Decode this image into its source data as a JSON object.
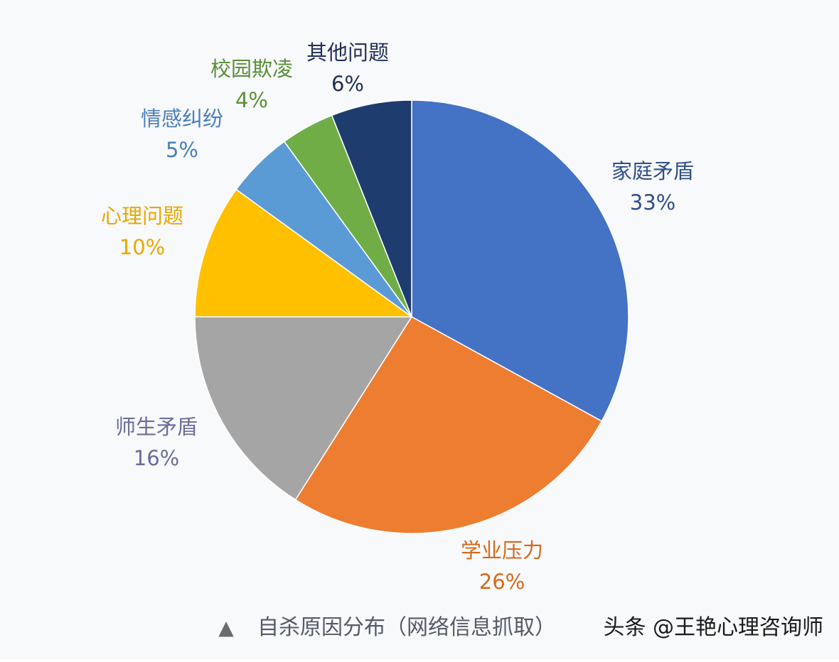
{
  "chart_data": {
    "type": "pie",
    "start_angle_deg": 0,
    "direction": "clockwise",
    "slices": [
      {
        "label": "家庭矛盾",
        "value": 33,
        "percent_label": "33%",
        "color": "#4472c4",
        "label_color": "#2f4f8a"
      },
      {
        "label": "学业压力",
        "value": 26,
        "percent_label": "26%",
        "color": "#ed7d31",
        "label_color": "#d46a1c"
      },
      {
        "label": "师生矛盾",
        "value": 16,
        "percent_label": "16%",
        "color": "#a5a5a5",
        "label_color": "#6c6c9a"
      },
      {
        "label": "心理问题",
        "value": 10,
        "percent_label": "10%",
        "color": "#ffc000",
        "label_color": "#e8a800"
      },
      {
        "label": "情感纠纷",
        "value": 5,
        "percent_label": "5%",
        "color": "#5b9bd5",
        "label_color": "#4a7fb8"
      },
      {
        "label": "校园欺凌",
        "value": 4,
        "percent_label": "4%",
        "color": "#70ad47",
        "label_color": "#5a8f3a"
      },
      {
        "label": "其他问题",
        "value": 6,
        "percent_label": "6%",
        "color": "#1f3c6e",
        "label_color": "#1f2f55"
      }
    ]
  },
  "caption": {
    "marker": "▲",
    "text": "自杀原因分布（网络信息抓取）",
    "color": "#555a66",
    "marker_color": "#6b6b6b"
  },
  "watermark": {
    "text": "头条 @王艳心理咨询师",
    "color": "#1a1a1a"
  }
}
